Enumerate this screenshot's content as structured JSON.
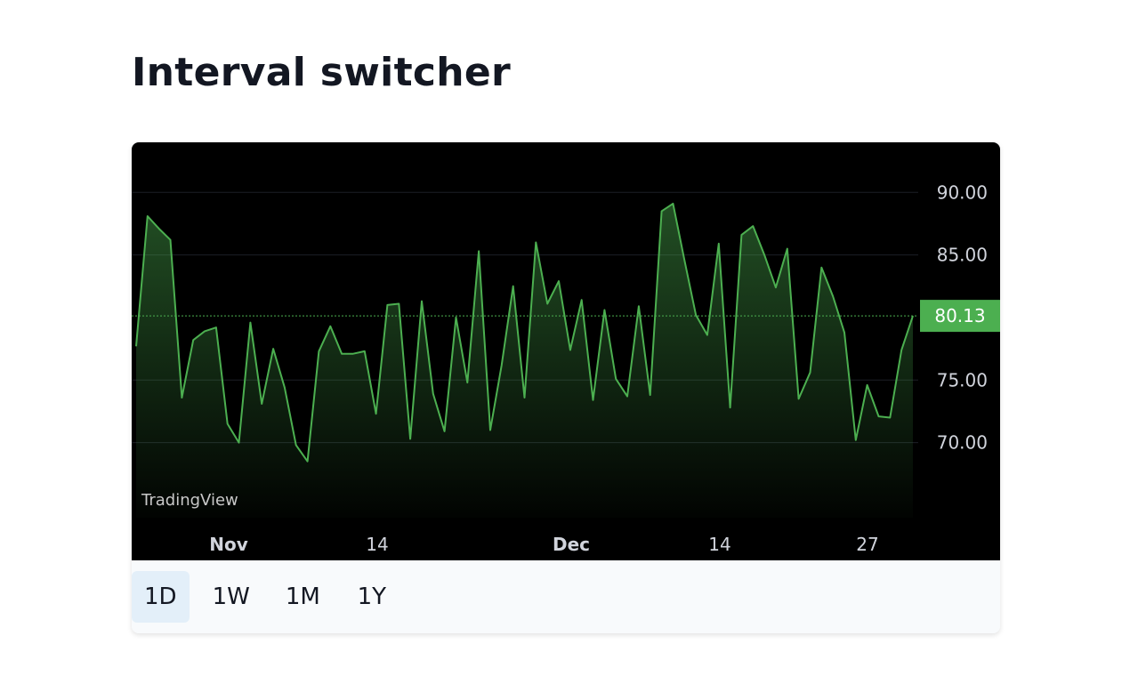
{
  "title": "Interval switcher",
  "watermark": "TradingView",
  "intervals": [
    "1D",
    "1W",
    "1M",
    "1Y"
  ],
  "active_interval": "1D",
  "colors": {
    "line": "#4caf50",
    "background": "#000000",
    "last_price_badge": "#4caf50",
    "axis_text": "#d1d4dc"
  },
  "chart_data": {
    "type": "area",
    "title": "",
    "xlabel": "",
    "ylabel": "",
    "y_ticks": [
      "90.00",
      "85.00",
      "75.00",
      "70.00"
    ],
    "x_ticks": [
      "Nov",
      "14",
      "Dec",
      "14",
      "27"
    ],
    "last_value_label": "80.13",
    "ylim": [
      64,
      94
    ],
    "series": [
      {
        "values": [
          77.7,
          88.1,
          87.1,
          86.2,
          73.6,
          78.2,
          78.9,
          79.2,
          71.5,
          70.0,
          79.6,
          73.1,
          77.5,
          74.4,
          69.8,
          68.5,
          77.3,
          79.3,
          77.1,
          77.1,
          77.3,
          72.3,
          81.0,
          81.1,
          70.3,
          81.3,
          73.9,
          70.9,
          80.0,
          74.8,
          85.3,
          71.0,
          76.2,
          82.5,
          73.6,
          86.0,
          81.1,
          82.9,
          77.4,
          81.4,
          73.4,
          80.6,
          75.1,
          73.7,
          80.9,
          73.8,
          88.5,
          89.1,
          84.6,
          80.2,
          78.6,
          85.9,
          72.8,
          86.6,
          87.3,
          85.0,
          82.4,
          85.5,
          73.5,
          75.6,
          84.0,
          81.7,
          78.8,
          70.2,
          74.6,
          72.1,
          72.0,
          77.4,
          80.13
        ]
      }
    ]
  }
}
